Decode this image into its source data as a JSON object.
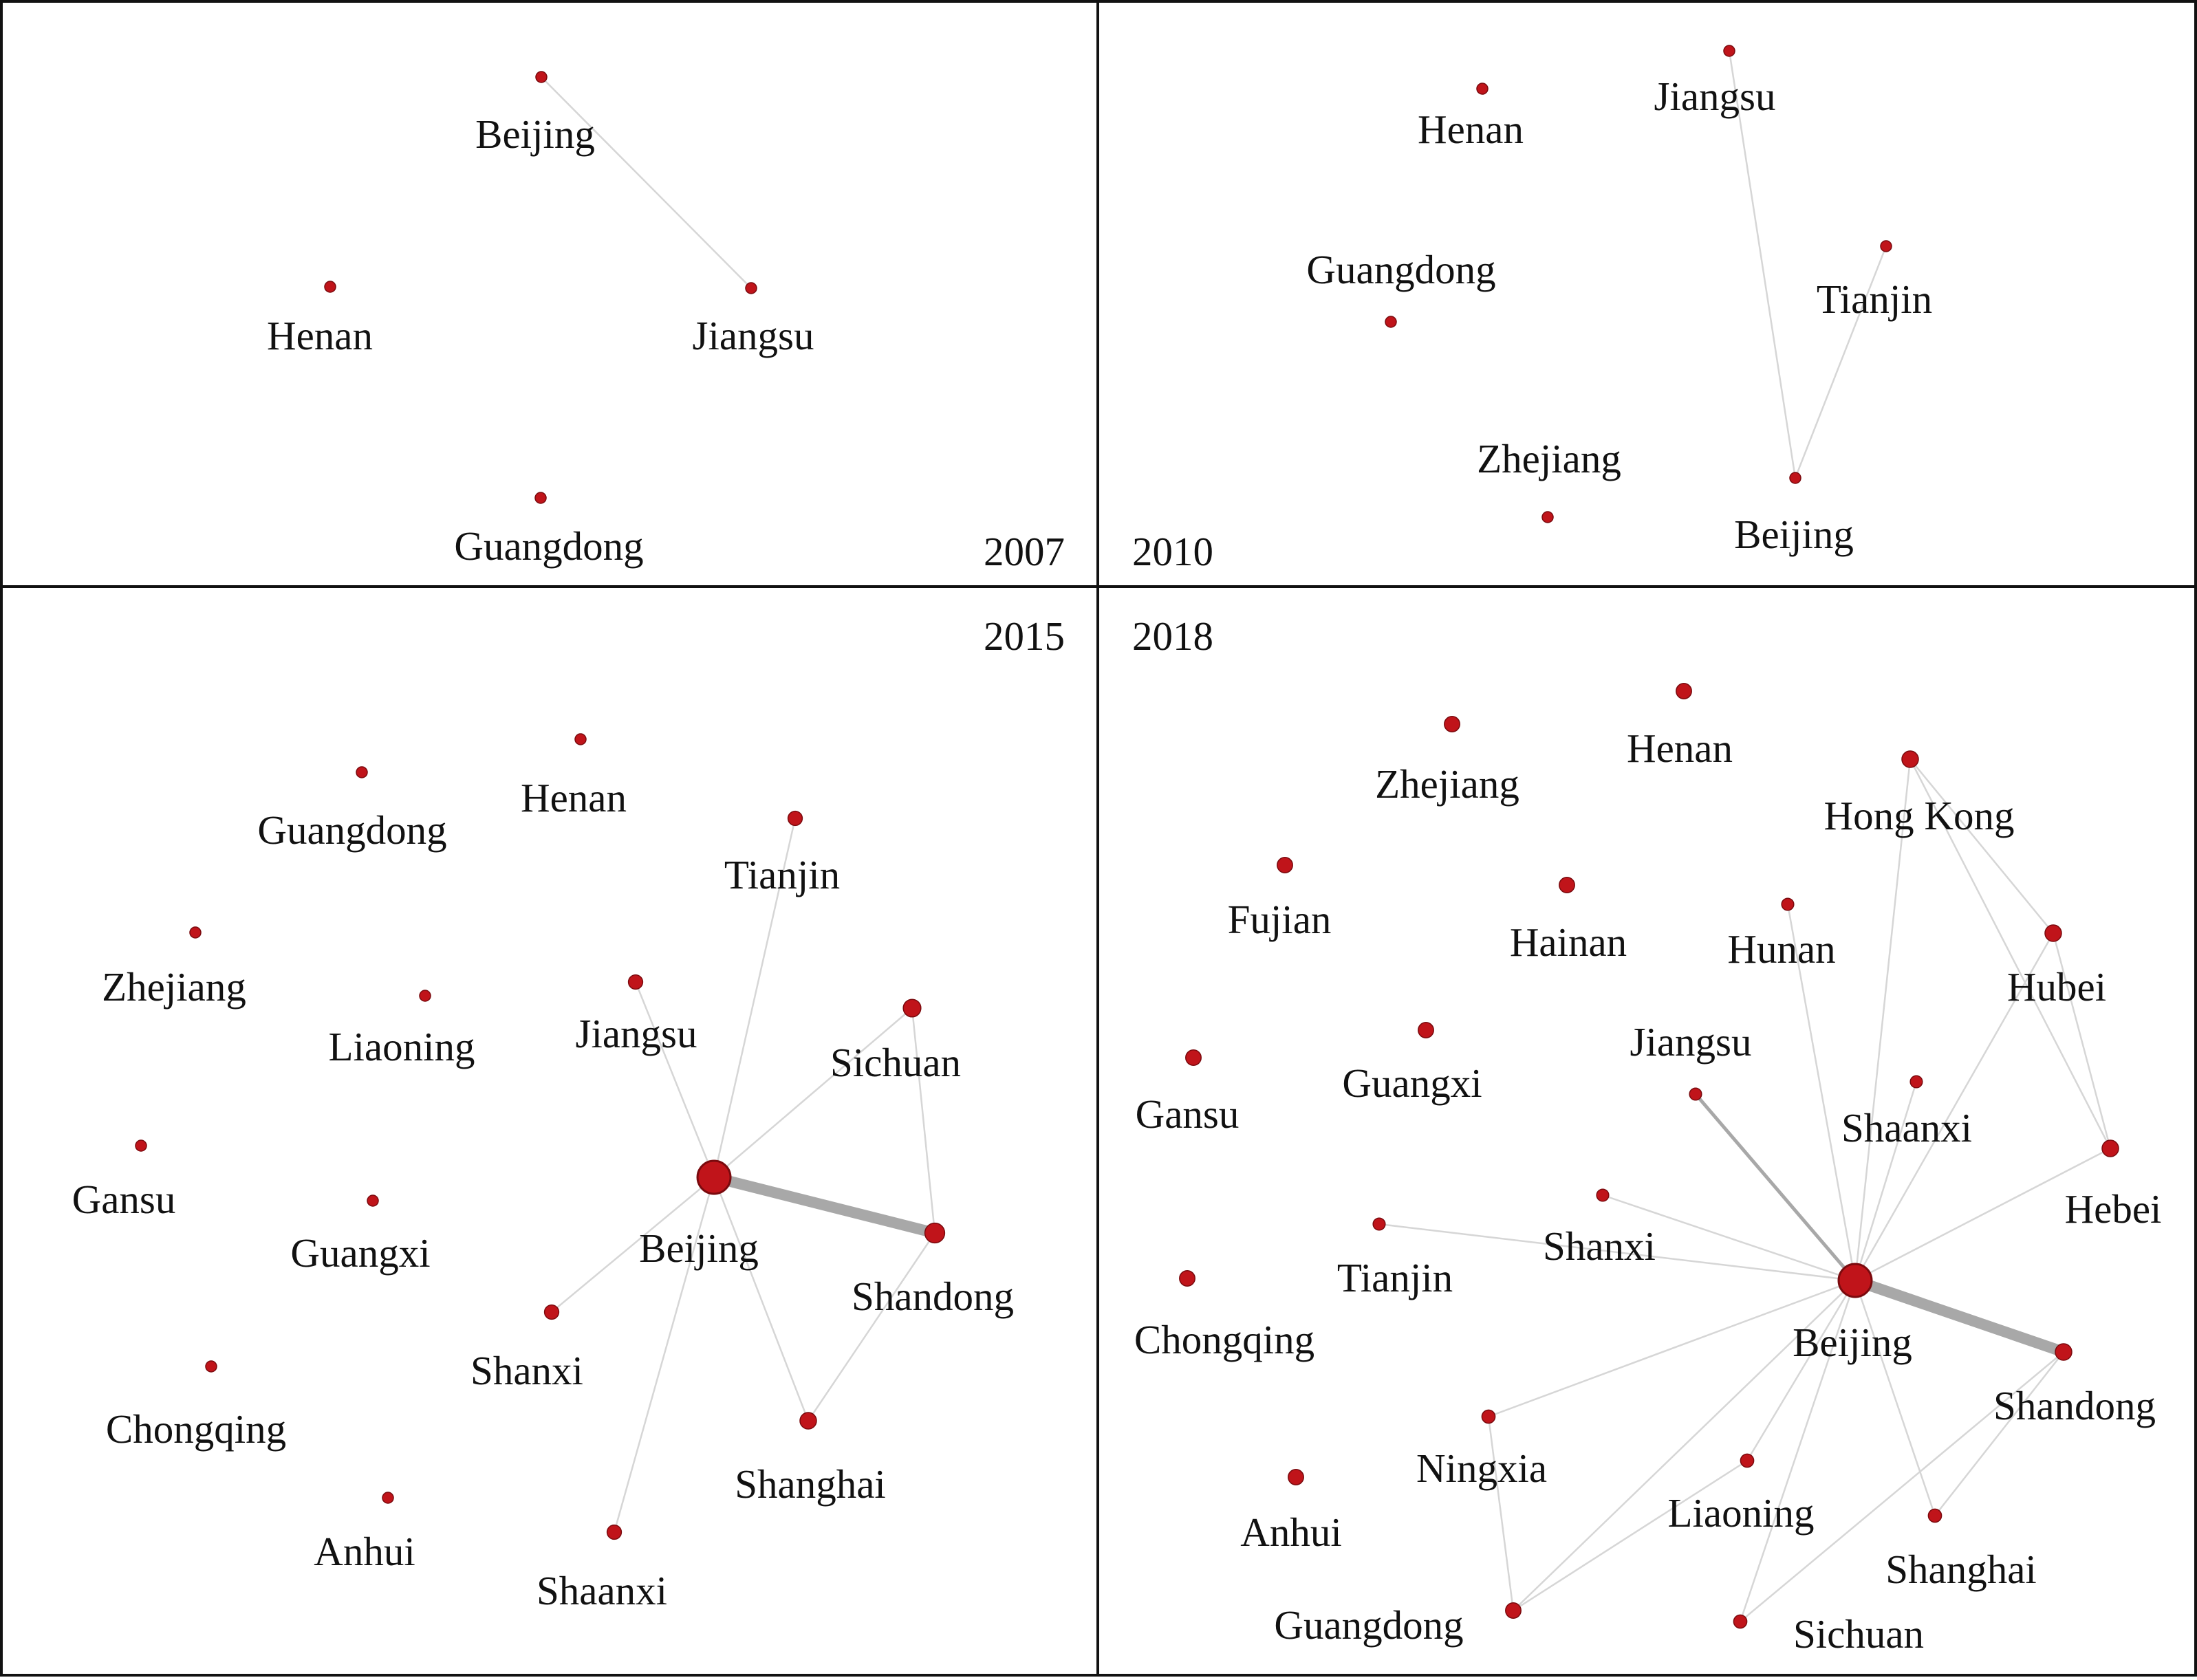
{
  "colors": {
    "node_fill": "#c0141a",
    "node_stroke": "#7a0a0e",
    "edge": "#d6d6d6",
    "edge_strong": "#a8a8a8",
    "frame": "#111111"
  },
  "panels": [
    {
      "id": "p2007",
      "year": "2007",
      "nodes": [
        {
          "id": "Beijing",
          "label": "Beijing",
          "size": 1
        },
        {
          "id": "Henan",
          "label": "Henan",
          "size": 1
        },
        {
          "id": "Jiangsu",
          "label": "Jiangsu",
          "size": 1
        },
        {
          "id": "Guangdong",
          "label": "Guangdong",
          "size": 1
        }
      ],
      "edges": [
        {
          "source": "Beijing",
          "target": "Jiangsu",
          "weight": 1
        }
      ]
    },
    {
      "id": "p2010",
      "year": "2010",
      "nodes": [
        {
          "id": "Henan",
          "label": "Henan",
          "size": 1
        },
        {
          "id": "Jiangsu",
          "label": "Jiangsu",
          "size": 1
        },
        {
          "id": "Guangdong",
          "label": "Guangdong",
          "size": 1
        },
        {
          "id": "Tianjin",
          "label": "Tianjin",
          "size": 1
        },
        {
          "id": "Zhejiang",
          "label": "Zhejiang",
          "size": 1
        },
        {
          "id": "Beijing",
          "label": "Beijing",
          "size": 1
        }
      ],
      "edges": [
        {
          "source": "Jiangsu",
          "target": "Beijing",
          "weight": 1
        },
        {
          "source": "Tianjin",
          "target": "Beijing",
          "weight": 1
        }
      ]
    },
    {
      "id": "p2015",
      "year": "2015",
      "nodes": [
        {
          "id": "Henan",
          "label": "Henan",
          "size": 1
        },
        {
          "id": "Guangdong",
          "label": "Guangdong",
          "size": 1
        },
        {
          "id": "Tianjin",
          "label": "Tianjin",
          "size": 1.3
        },
        {
          "id": "Zhejiang",
          "label": "Zhejiang",
          "size": 1
        },
        {
          "id": "Liaoning",
          "label": "Liaoning",
          "size": 1
        },
        {
          "id": "Jiangsu",
          "label": "Jiangsu",
          "size": 1.3
        },
        {
          "id": "Sichuan",
          "label": "Sichuan",
          "size": 1.6
        },
        {
          "id": "Gansu",
          "label": "Gansu",
          "size": 1
        },
        {
          "id": "Guangxi",
          "label": "Guangxi",
          "size": 1
        },
        {
          "id": "Beijing",
          "label": "Beijing",
          "size": 3
        },
        {
          "id": "Shandong",
          "label": "Shandong",
          "size": 1.8
        },
        {
          "id": "Shanxi",
          "label": "Shanxi",
          "size": 1.3
        },
        {
          "id": "Chongqing",
          "label": "Chongqing",
          "size": 1
        },
        {
          "id": "Shanghai",
          "label": "Shanghai",
          "size": 1.5
        },
        {
          "id": "Anhui",
          "label": "Anhui",
          "size": 1
        },
        {
          "id": "Shaanxi",
          "label": "Shaanxi",
          "size": 1.3
        }
      ],
      "edges": [
        {
          "source": "Beijing",
          "target": "Shandong",
          "weight": 5
        },
        {
          "source": "Beijing",
          "target": "Tianjin",
          "weight": 1
        },
        {
          "source": "Beijing",
          "target": "Jiangsu",
          "weight": 1
        },
        {
          "source": "Beijing",
          "target": "Sichuan",
          "weight": 1
        },
        {
          "source": "Sichuan",
          "target": "Shandong",
          "weight": 1
        },
        {
          "source": "Beijing",
          "target": "Shanxi",
          "weight": 1
        },
        {
          "source": "Beijing",
          "target": "Shanghai",
          "weight": 1
        },
        {
          "source": "Beijing",
          "target": "Shaanxi",
          "weight": 1
        },
        {
          "source": "Shandong",
          "target": "Shanghai",
          "weight": 1
        }
      ]
    },
    {
      "id": "p2018",
      "year": "2018",
      "nodes": [
        {
          "id": "Henan",
          "label": "Henan",
          "size": 1.4
        },
        {
          "id": "Zhejiang",
          "label": "Zhejiang",
          "size": 1.4
        },
        {
          "id": "Hong Kong",
          "label": "Hong Kong",
          "size": 1.5
        },
        {
          "id": "Fujian",
          "label": "Fujian",
          "size": 1.4
        },
        {
          "id": "Hainan",
          "label": "Hainan",
          "size": 1.4
        },
        {
          "id": "Hunan",
          "label": "Hunan",
          "size": 1.1
        },
        {
          "id": "Hubei",
          "label": "Hubei",
          "size": 1.5
        },
        {
          "id": "Gansu",
          "label": "Gansu",
          "size": 1.4
        },
        {
          "id": "Guangxi",
          "label": "Guangxi",
          "size": 1.4
        },
        {
          "id": "Jiangsu",
          "label": "Jiangsu",
          "size": 1.1
        },
        {
          "id": "Shaanxi",
          "label": "Shaanxi",
          "size": 1.1
        },
        {
          "id": "Hebei",
          "label": "Hebei",
          "size": 1.5
        },
        {
          "id": "Shanxi",
          "label": "Shanxi",
          "size": 1.1
        },
        {
          "id": "Tianjin",
          "label": "Tianjin",
          "size": 1.1
        },
        {
          "id": "Chongqing",
          "label": "Chongqing",
          "size": 1.4
        },
        {
          "id": "Beijing",
          "label": "Beijing",
          "size": 3
        },
        {
          "id": "Shandong",
          "label": "Shandong",
          "size": 1.5
        },
        {
          "id": "Ningxia",
          "label": "Ningxia",
          "size": 1.2
        },
        {
          "id": "Liaoning",
          "label": "Liaoning",
          "size": 1.2
        },
        {
          "id": "Anhui",
          "label": "Anhui",
          "size": 1.4
        },
        {
          "id": "Shanghai",
          "label": "Shanghai",
          "size": 1.2
        },
        {
          "id": "Guangdong",
          "label": "Guangdong",
          "size": 1.4
        },
        {
          "id": "Sichuan",
          "label": "Sichuan",
          "size": 1.2
        }
      ],
      "edges": [
        {
          "source": "Beijing",
          "target": "Shandong",
          "weight": 5
        },
        {
          "source": "Beijing",
          "target": "Jiangsu",
          "weight": 2.5
        },
        {
          "source": "Beijing",
          "target": "Hong Kong",
          "weight": 1
        },
        {
          "source": "Beijing",
          "target": "Hunan",
          "weight": 1
        },
        {
          "source": "Beijing",
          "target": "Hubei",
          "weight": 1
        },
        {
          "source": "Beijing",
          "target": "Shaanxi",
          "weight": 1
        },
        {
          "source": "Beijing",
          "target": "Hebei",
          "weight": 1
        },
        {
          "source": "Beijing",
          "target": "Shanxi",
          "weight": 1
        },
        {
          "source": "Beijing",
          "target": "Tianjin",
          "weight": 1
        },
        {
          "source": "Beijing",
          "target": "Ningxia",
          "weight": 1
        },
        {
          "source": "Beijing",
          "target": "Liaoning",
          "weight": 1
        },
        {
          "source": "Beijing",
          "target": "Guangdong",
          "weight": 1
        },
        {
          "source": "Beijing",
          "target": "Sichuan",
          "weight": 1
        },
        {
          "source": "Beijing",
          "target": "Shanghai",
          "weight": 1
        },
        {
          "source": "Hong Kong",
          "target": "Hubei",
          "weight": 1
        },
        {
          "source": "Hong Kong",
          "target": "Hebei",
          "weight": 1
        },
        {
          "source": "Hubei",
          "target": "Hebei",
          "weight": 1
        },
        {
          "source": "Ningxia",
          "target": "Guangdong",
          "weight": 1
        },
        {
          "source": "Liaoning",
          "target": "Guangdong",
          "weight": 1
        },
        {
          "source": "Shandong",
          "target": "Shanghai",
          "weight": 1
        },
        {
          "source": "Shandong",
          "target": "Sichuan",
          "weight": 1
        }
      ]
    }
  ]
}
